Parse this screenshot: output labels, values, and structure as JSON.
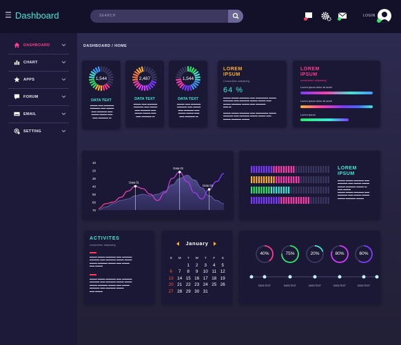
{
  "header": {
    "title": "Dashboard",
    "search_placeholder": "SEARCH",
    "login_label": "LOGIN"
  },
  "colors": {
    "accent_cyan": "#3ee8d6",
    "accent_pink": "#ff3c8e",
    "accent_orange": "#ffb02e",
    "accent_purple": "#7c3cff",
    "accent_green": "#2ee86a",
    "danger_red": "#ff5a3a"
  },
  "icons": [
    "menu-icon",
    "search-icon",
    "message-icon",
    "gear-icon",
    "mail-icon",
    "user-icon"
  ],
  "sidebar": {
    "items": [
      {
        "label": "DASHBOARD",
        "icon": "home-icon",
        "active": true
      },
      {
        "label": "CHART",
        "icon": "bar-chart-icon",
        "active": false
      },
      {
        "label": "APPS",
        "icon": "star-icon",
        "active": false
      },
      {
        "label": "FORUM",
        "icon": "chat-icon",
        "active": false
      },
      {
        "label": "EMAIL",
        "icon": "keyboard-icon",
        "active": false
      },
      {
        "label": "SETTING",
        "icon": "gear-icon",
        "active": false
      }
    ]
  },
  "breadcrumb": "DASHBOARD / HOME",
  "stat_cards": [
    {
      "value": "1,544",
      "title": "DATA TEXT",
      "fraction": 0.35
    },
    {
      "value": "2,487",
      "title": "DATA TEXT",
      "fraction": 0.3
    },
    {
      "value": "1,544",
      "title": "DATA TEXT",
      "fraction": 0.75
    }
  ],
  "lorem_card": {
    "title_line1": "LOREM",
    "title_line2": "IPSUM",
    "subtitle": "Consectetur adipiscing",
    "percent": "64 %"
  },
  "lorem_bars_card": {
    "title_line1": "LOREM",
    "title_line2": "IPSUM",
    "subtitle": "consectetur adipiscing",
    "bar_labels": [
      "Lorem ipsum dolor sit amet",
      "Lorem ipsum dolor sit amet",
      "Lorem ipsum"
    ]
  },
  "chart_data": {
    "type": "area",
    "y_ticks": [
      "10",
      "20",
      "30",
      "40",
      "50",
      "60",
      "70"
    ],
    "annotations": [
      "Data 01",
      "Data 02",
      "Data 03"
    ],
    "series": [
      {
        "values": [
          68,
          62,
          60,
          54,
          46,
          40,
          43,
          50,
          58,
          48,
          30,
          22,
          34,
          48,
          56,
          44,
          34,
          24
        ]
      },
      {
        "values": [
          70,
          66,
          62,
          58,
          56,
          52,
          50,
          52,
          50,
          46,
          38,
          30,
          26,
          32,
          42,
          52,
          58,
          62
        ]
      }
    ]
  },
  "progress_card": {
    "title_line1": "LOREM",
    "title_line2": "IPSUM",
    "levels": [
      0.55,
      0.62,
      0.5,
      0.72
    ],
    "bar_colors": [
      "#7c3cff",
      "#ffb02e",
      "#2ee86a",
      "#ff3cae"
    ]
  },
  "activities": {
    "title": "ACTIVITES",
    "subtitle": "consectetur adipiscing"
  },
  "calendar": {
    "month": "January",
    "weekdays": [
      "S",
      "M",
      "T",
      "W",
      "T",
      "F",
      "S"
    ],
    "weeks": [
      [
        "",
        "",
        "1",
        "2",
        "3",
        "4",
        "5"
      ],
      [
        "6",
        "7",
        "8",
        "9",
        "10",
        "11",
        "12"
      ],
      [
        "13",
        "14",
        "15",
        "16",
        "17",
        "18",
        "19"
      ],
      [
        "20",
        "21",
        "22",
        "23",
        "24",
        "25",
        "26"
      ],
      [
        "27",
        "28",
        "29",
        "30",
        "31",
        "",
        ""
      ]
    ]
  },
  "percent_circles": [
    {
      "label": "40%",
      "fraction": 0.4,
      "color": "#ff3c8e"
    },
    {
      "label": "75%",
      "fraction": 0.75,
      "color": "#2ee86a"
    },
    {
      "label": "20%",
      "fraction": 0.2,
      "color": "#3ee8d6"
    },
    {
      "label": "80%",
      "fraction": 0.8,
      "color": "#d23cff"
    },
    {
      "label": "60%",
      "fraction": 0.6,
      "color": "#7c3cff"
    }
  ],
  "timeline_labels": [
    "DATA TEXT",
    "DATA TEXT",
    "DATA TEXT",
    "DATA TEXT",
    "DATA TEXT"
  ]
}
